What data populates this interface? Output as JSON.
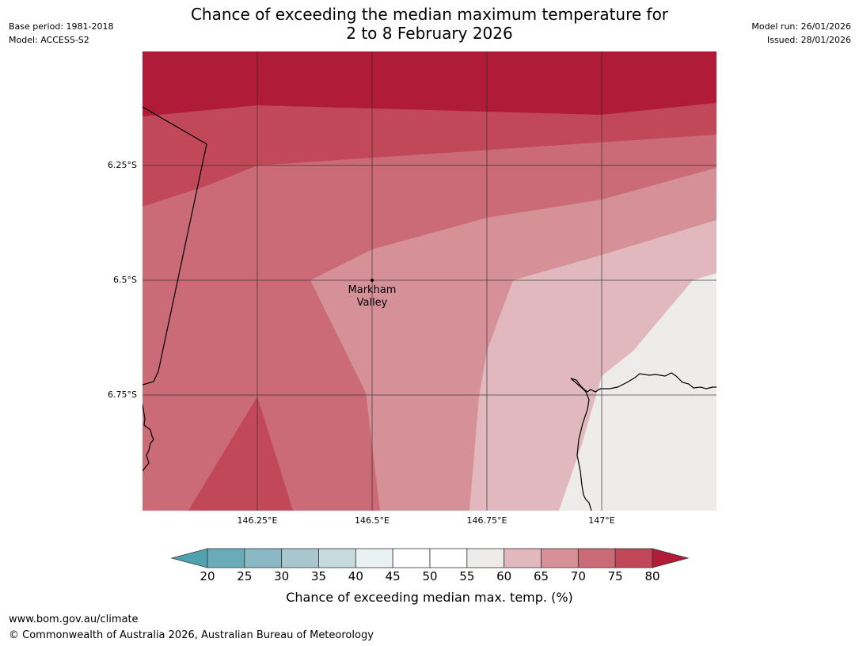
{
  "header": {
    "title_line1": "Chance of exceeding the median maximum temperature for",
    "title_line2": "2 to 8 February 2026",
    "base_period": "Base period: 1981-2018",
    "model": "Model: ACCESS-S2",
    "model_run": "Model run: 26/01/2026",
    "issued": "Issued: 28/01/2026"
  },
  "map": {
    "latitude_labels": [
      "6.25°S",
      "6.5°S",
      "6.75°S"
    ],
    "longitude_labels": [
      "146.25°E",
      "146.5°E",
      "146.75°E",
      "147°E"
    ],
    "place": {
      "name_line1": "Markham",
      "name_line2": "Valley"
    },
    "bands": [
      {
        "range": "75-80",
        "color": "#b01c38"
      },
      {
        "range": "70-75",
        "color": "#c04858"
      },
      {
        "range": "65-70",
        "color": "#cb6b77"
      },
      {
        "range": "60-65",
        "color": "#d59098"
      },
      {
        "range": "55-60",
        "color": "#e0b8bd"
      },
      {
        "range": "50-55",
        "color": "#eeecea"
      }
    ]
  },
  "colorbar": {
    "label": "Chance of exceeding median max. temp. (%)",
    "ticks": [
      "20",
      "25",
      "30",
      "35",
      "40",
      "45",
      "50",
      "55",
      "60",
      "65",
      "70",
      "75",
      "80"
    ],
    "low_color": "#4fa2b0",
    "high_color": "#b01c38",
    "segments": [
      "#6aabb9",
      "#8ab8c4",
      "#a7c6cd",
      "#c7dadd",
      "#e9f1f3",
      "#ffffff",
      "#ffffff",
      "#eeecea",
      "#e0b8bd",
      "#d59098",
      "#cb6b77",
      "#c04858"
    ]
  },
  "footer": {
    "url": "www.bom.gov.au/climate",
    "copyright": "© Commonwealth of Australia 2026, Australian Bureau of Meteorology"
  }
}
